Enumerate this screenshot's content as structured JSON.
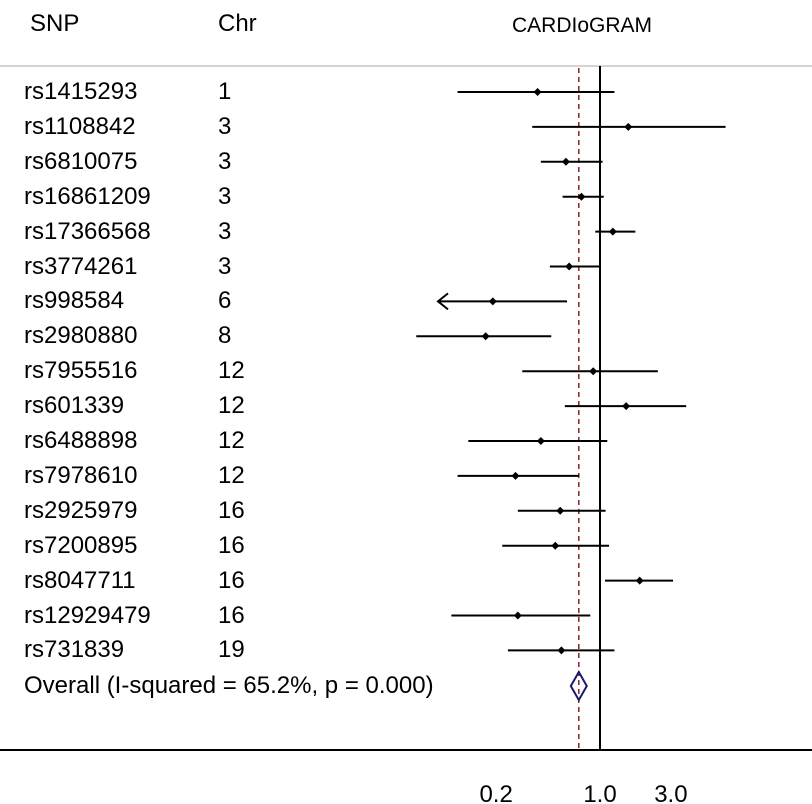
{
  "header": {
    "snp_label": "SNP",
    "chr_label": "Chr",
    "study_label": "CARDIoGRAM"
  },
  "overall_label": "Overall  (I-squared = 65.2%, p = 0.000)",
  "colors": {
    "line": "#000000",
    "reference_dashed": "#8b2323",
    "diamond": "#1a1a6e"
  },
  "chart_data": {
    "type": "forest",
    "title": "CARDIoGRAM",
    "x_scale": "log",
    "null_value": 1.0,
    "overall_estimate": 0.72,
    "x_ticks": [
      0.2,
      1.0,
      3.0
    ],
    "x_tick_labels": [
      "0.2",
      "1.0",
      "3.0"
    ],
    "rows": [
      {
        "snp": "rs1415293",
        "chr": "1",
        "est": 0.38,
        "lo": 0.11,
        "hi": 1.25
      },
      {
        "snp": "rs1108842",
        "chr": "3",
        "est": 1.55,
        "lo": 0.35,
        "hi": 7.0
      },
      {
        "snp": "rs6810075",
        "chr": "3",
        "est": 0.59,
        "lo": 0.4,
        "hi": 1.04
      },
      {
        "snp": "rs16861209",
        "chr": "3",
        "est": 0.75,
        "lo": 0.56,
        "hi": 1.06
      },
      {
        "snp": "rs17366568",
        "chr": "3",
        "est": 1.22,
        "lo": 0.93,
        "hi": 1.73
      },
      {
        "snp": "rs3774261",
        "chr": "3",
        "est": 0.62,
        "lo": 0.46,
        "hi": 0.99
      },
      {
        "snp": "rs998584",
        "chr": "6",
        "est": 0.19,
        "lo": 0.035,
        "hi": 0.6,
        "arrow_left": true
      },
      {
        "snp": "rs2980880",
        "chr": "8",
        "est": 0.17,
        "lo": 0.058,
        "hi": 0.47
      },
      {
        "snp": "rs7955516",
        "chr": "12",
        "est": 0.9,
        "lo": 0.3,
        "hi": 2.45
      },
      {
        "snp": "rs601339",
        "chr": "12",
        "est": 1.5,
        "lo": 0.58,
        "hi": 3.8
      },
      {
        "snp": "rs6488898",
        "chr": "12",
        "est": 0.4,
        "lo": 0.13,
        "hi": 1.12
      },
      {
        "snp": "rs7978610",
        "chr": "12",
        "est": 0.27,
        "lo": 0.11,
        "hi": 0.72
      },
      {
        "snp": "rs2925979",
        "chr": "16",
        "est": 0.54,
        "lo": 0.28,
        "hi": 1.09
      },
      {
        "snp": "rs7200895",
        "chr": "16",
        "est": 0.5,
        "lo": 0.22,
        "hi": 1.15
      },
      {
        "snp": "rs8047711",
        "chr": "16",
        "est": 1.85,
        "lo": 1.08,
        "hi": 3.1
      },
      {
        "snp": "rs12929479",
        "chr": "16",
        "est": 0.28,
        "lo": 0.1,
        "hi": 0.86
      },
      {
        "snp": "rs731839",
        "chr": "19",
        "est": 0.55,
        "lo": 0.24,
        "hi": 1.25
      }
    ]
  }
}
